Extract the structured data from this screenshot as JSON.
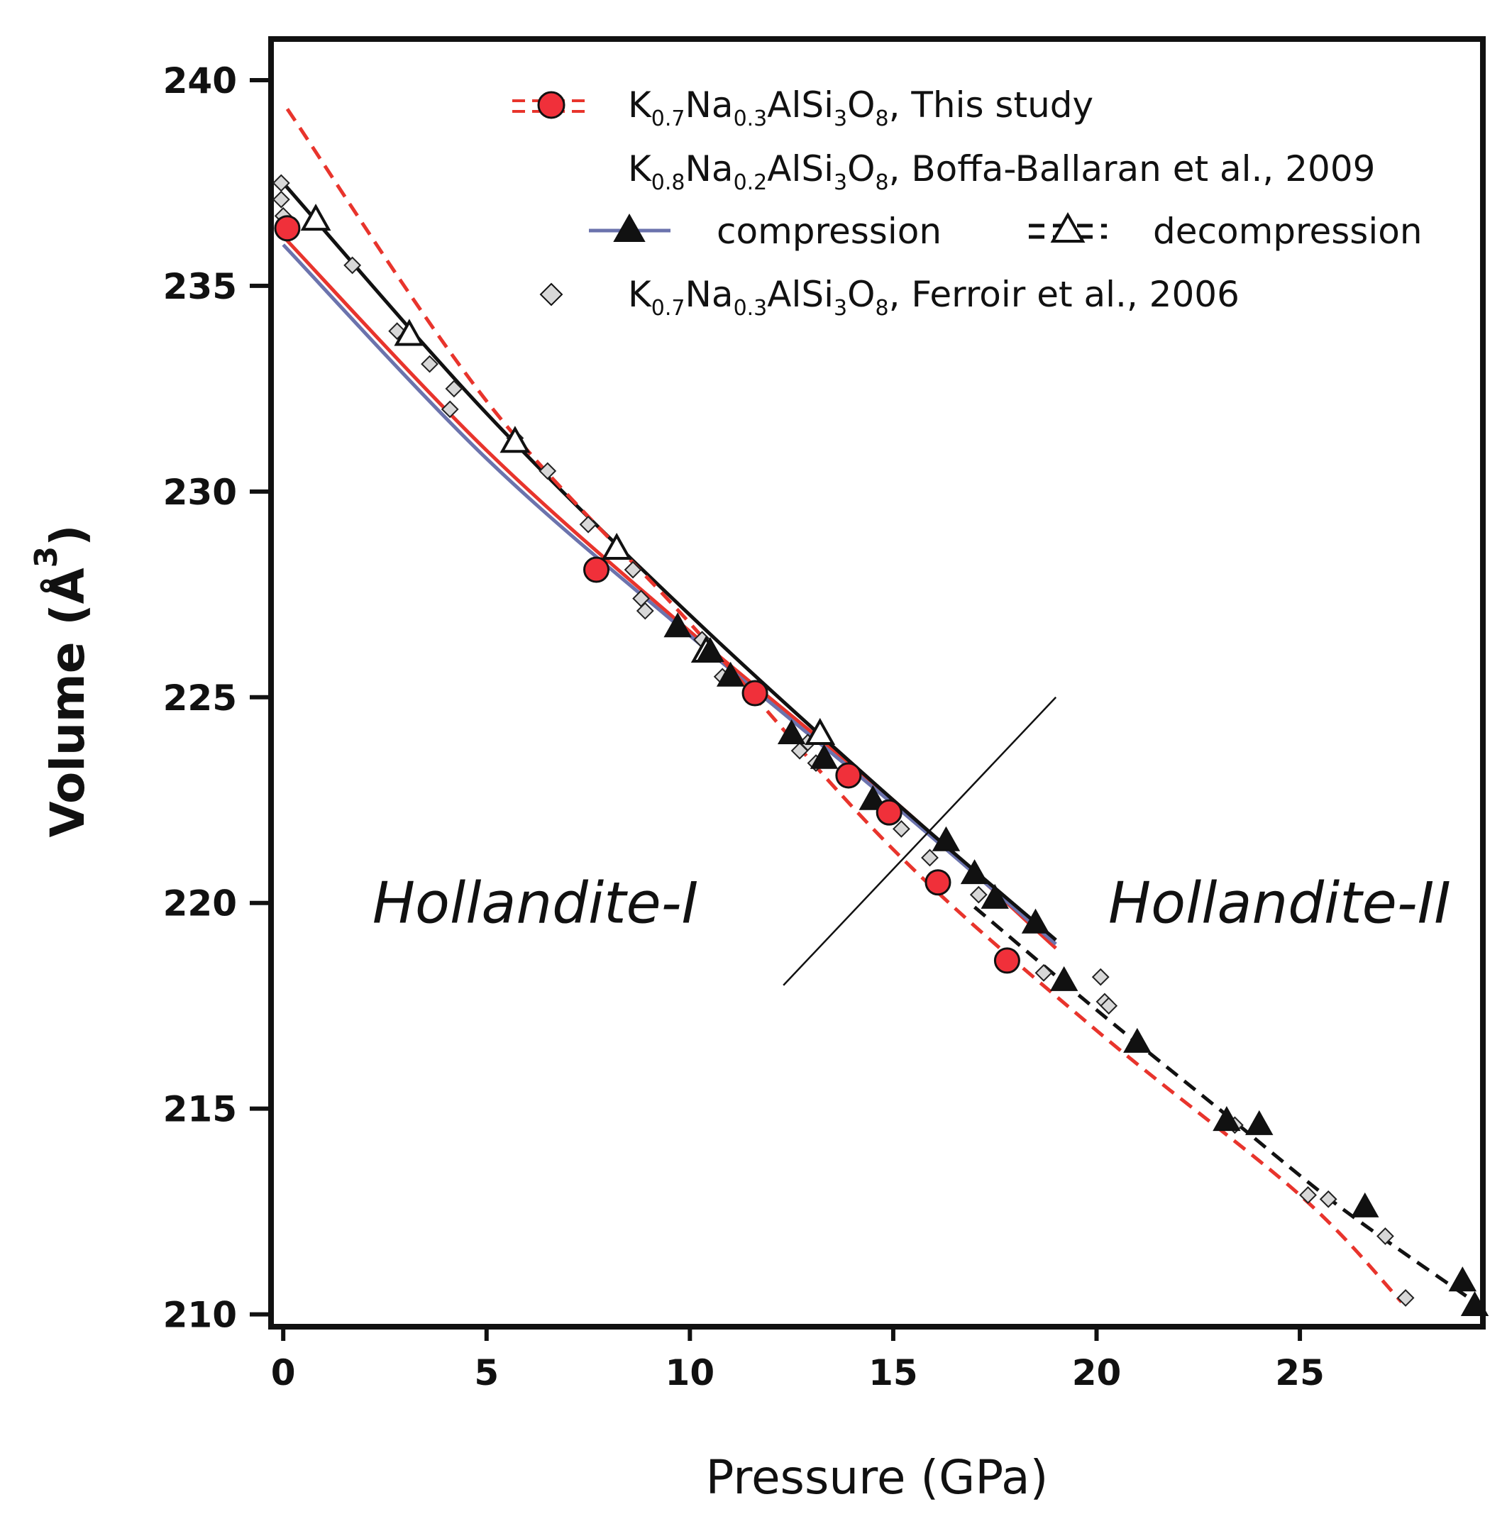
{
  "chart_data": {
    "type": "scatter",
    "title": "",
    "xlabel": "Pressure (GPa)",
    "ylabel_main": "Volume (Å",
    "ylabel_sup": "3",
    "ylabel_close": ")",
    "xlim": [
      -0.3,
      29.5
    ],
    "ylim": [
      209.7,
      241.0
    ],
    "xticks": [
      0,
      5,
      10,
      15,
      20,
      25
    ],
    "xtick_labels": [
      "0",
      "5",
      "10",
      "15",
      "20",
      "25"
    ],
    "yticks": [
      210,
      215,
      220,
      225,
      230,
      235,
      240
    ],
    "ytick_labels": [
      "210",
      "215",
      "220",
      "225",
      "230",
      "235",
      "240"
    ],
    "region_labels": [
      {
        "text": "Hollandite-I",
        "x": 6.2,
        "y": 220
      },
      {
        "text": "Hollandite-II",
        "x": 24.5,
        "y": 220
      }
    ],
    "phase_boundary": [
      [
        12.3,
        218.0
      ],
      [
        19.0,
        225.0
      ]
    ],
    "legend": {
      "this_study": {
        "main": "K",
        "s1": "0.7",
        "m2": "Na",
        "s2": "0.3",
        "m3": "AlSi",
        "s3": "3",
        "m4": "O",
        "s4": "8",
        "tail": ", This study"
      },
      "boffa": {
        "main": "K",
        "s1": "0.8",
        "m2": "Na",
        "s2": "0.2",
        "m3": "AlSi",
        "s3": "3",
        "m4": "O",
        "s4": "8",
        "tail": ", Boffa-Ballaran et al., 2009"
      },
      "compression": "compression",
      "decompression": "decompression",
      "ferroir": {
        "main": "K",
        "s1": "0.7",
        "m2": "Na",
        "s2": "0.3",
        "m3": "AlSi",
        "s3": "3",
        "m4": "O",
        "s4": "8",
        "tail": ", Ferroir et al., 2006"
      }
    },
    "series": [
      {
        "name": "K0.7Na0.3AlSi3O8, This study",
        "marker": "circle",
        "color": "#f0303a",
        "x": [
          0.1,
          7.7,
          11.6,
          13.9,
          14.9,
          16.1,
          17.8
        ],
        "y": [
          236.4,
          228.1,
          225.1,
          223.1,
          222.2,
          220.5,
          218.6
        ]
      },
      {
        "name": "Boffa-Ballaran et al., 2009 compression",
        "marker": "triangle-filled",
        "color": "#111111",
        "x": [
          9.7,
          10.5,
          11.0,
          12.5,
          13.3,
          14.5,
          16.3,
          17.0,
          17.5,
          18.5,
          19.2,
          21.0,
          23.2,
          24.0,
          26.6,
          29.0,
          29.3
        ],
        "y": [
          226.7,
          226.1,
          225.5,
          224.1,
          223.5,
          222.5,
          221.5,
          220.7,
          220.1,
          219.5,
          218.1,
          216.6,
          214.7,
          214.6,
          212.6,
          210.8,
          210.2
        ]
      },
      {
        "name": "Boffa-Ballaran et al., 2009 decompression",
        "marker": "triangle-open",
        "color": "#111111",
        "x": [
          0.8,
          3.1,
          5.7,
          8.2,
          10.4,
          13.2
        ],
        "y": [
          236.6,
          233.8,
          231.2,
          228.6,
          226.1,
          224.1
        ]
      },
      {
        "name": "K0.7Na0.3AlSi3O8, Ferroir et al., 2006",
        "marker": "diamond",
        "color": "#d8d8d8",
        "x": [
          -0.05,
          -0.05,
          0.0,
          1.7,
          2.8,
          3.6,
          4.2,
          4.1,
          5.7,
          6.5,
          7.5,
          8.6,
          8.8,
          8.9,
          10.3,
          10.8,
          12.7,
          12.9,
          13.1,
          15.2,
          15.9,
          17.1,
          18.7,
          20.1,
          20.2,
          20.3,
          23.4,
          25.2,
          25.7,
          27.1,
          27.6
        ],
        "y": [
          237.5,
          237.1,
          236.7,
          235.5,
          233.9,
          233.1,
          232.5,
          232.0,
          231.3,
          230.5,
          229.2,
          228.1,
          227.4,
          227.1,
          226.4,
          225.5,
          223.7,
          223.9,
          223.4,
          221.8,
          221.1,
          220.2,
          218.3,
          218.2,
          217.6,
          217.5,
          214.6,
          212.9,
          212.8,
          211.9,
          210.4
        ]
      }
    ],
    "fit_lines": [
      {
        "name": "This study fit (solid)",
        "style": "solid",
        "color": "#e8342c",
        "x": [
          0,
          5,
          10,
          15,
          19.0
        ],
        "y": [
          236.2,
          231.0,
          226.6,
          222.5,
          218.9
        ]
      },
      {
        "name": "Boffa compression fit",
        "style": "solid",
        "color": "#6b73ad",
        "x": [
          0,
          5,
          10,
          15,
          19.0
        ],
        "y": [
          236.0,
          230.8,
          226.5,
          222.4,
          219.0
        ]
      },
      {
        "name": "Boffa decompression fit",
        "style": "solid",
        "color": "#111111",
        "x": [
          0,
          5,
          10,
          15,
          19.0
        ],
        "y": [
          237.5,
          231.9,
          227.0,
          222.5,
          219.1
        ]
      },
      {
        "name": "This study HP fit (dashed)",
        "style": "dashed",
        "color": "#e8342c",
        "x": [
          0.1,
          5,
          10,
          15,
          20,
          25,
          27.5
        ],
        "y": [
          239.3,
          232.2,
          226.8,
          221.3,
          216.9,
          212.9,
          210.3
        ]
      },
      {
        "name": "Boffa Hollandite-II fit (dashed)",
        "style": "dashed",
        "color": "#111111",
        "x": [
          17.0,
          20,
          23,
          26,
          29.3
        ],
        "y": [
          219.9,
          217.4,
          215.0,
          212.6,
          210.3
        ]
      }
    ]
  }
}
